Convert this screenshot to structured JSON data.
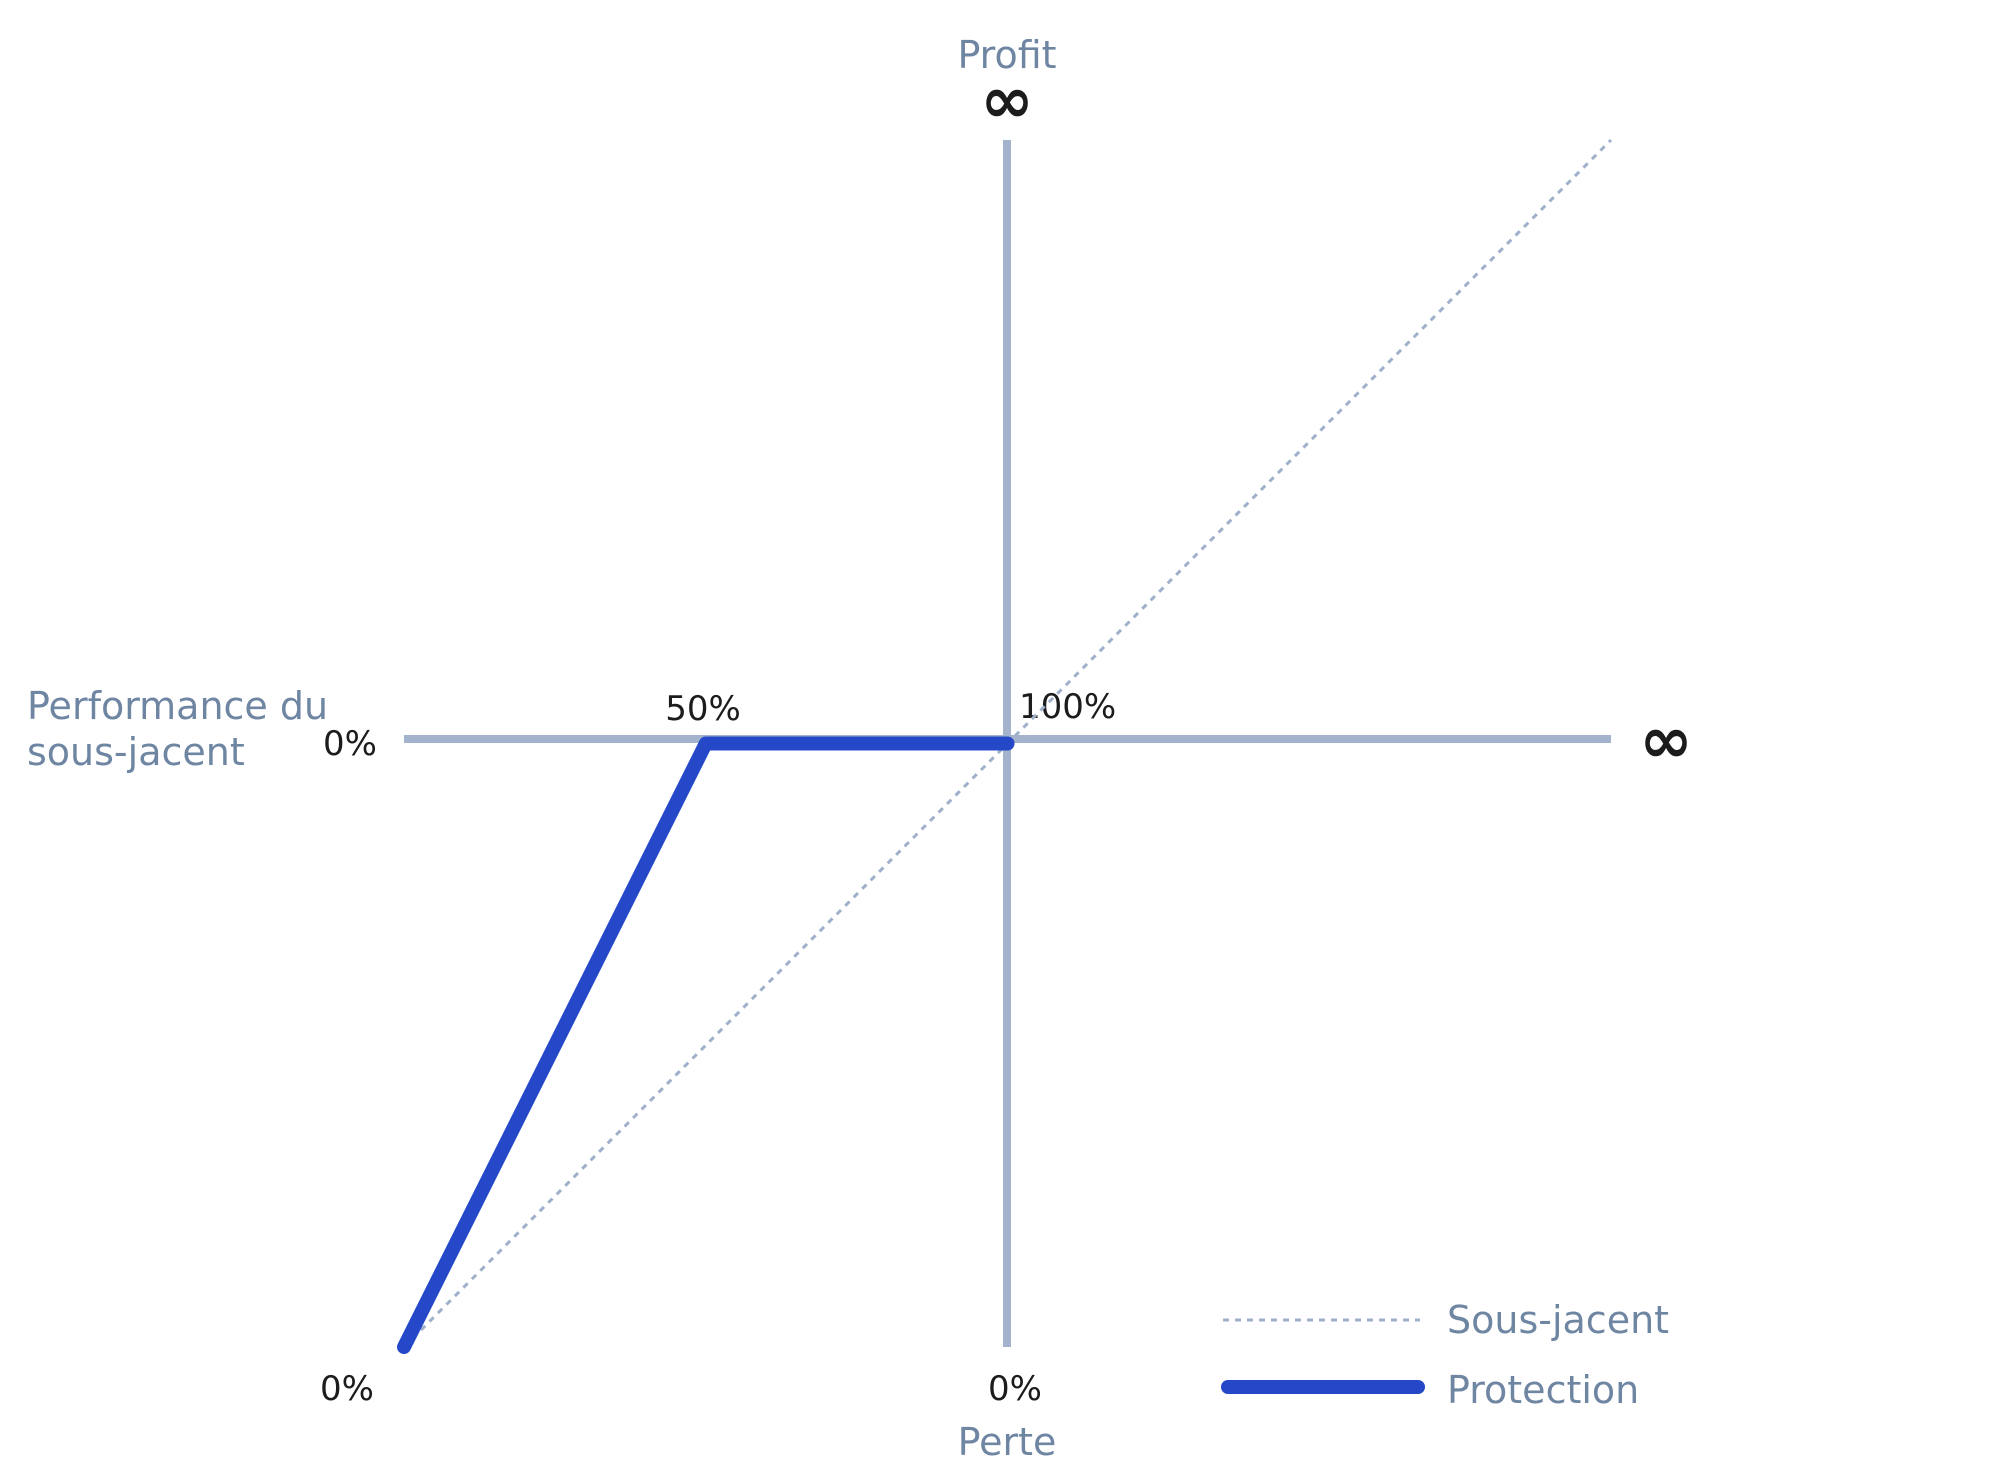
{
  "chart_data": {
    "type": "line",
    "labels": {
      "y_top": "Profit",
      "y_top_symbol": "∞",
      "y_bottom": "Perte",
      "x_left_line1": "Performance du",
      "x_left_line2": "sous-jacent",
      "x_right_symbol": "∞",
      "tick_left_zero": "0%",
      "tick_bottom_left_zero": "0%",
      "tick_bottom_center_zero": "0%",
      "tick_50": "50%",
      "tick_100": "100%"
    },
    "x_domain": [
      0,
      200
    ],
    "y_domain": [
      -100,
      100
    ],
    "series": [
      {
        "name": "Sous-jacent",
        "style": "dotted",
        "color": "#9fb0ca",
        "points": [
          [
            0,
            -100
          ],
          [
            200,
            100
          ]
        ]
      },
      {
        "name": "Protection",
        "style": "solid",
        "color": "#2448c8",
        "points": [
          [
            0,
            -100
          ],
          [
            50,
            0
          ],
          [
            100,
            0
          ]
        ]
      }
    ],
    "legend": {
      "position": "bottom-right"
    }
  },
  "colors": {
    "axis": "#a3b3cb",
    "label": "#6f86a3",
    "text_dark": "#1c1c1c"
  }
}
